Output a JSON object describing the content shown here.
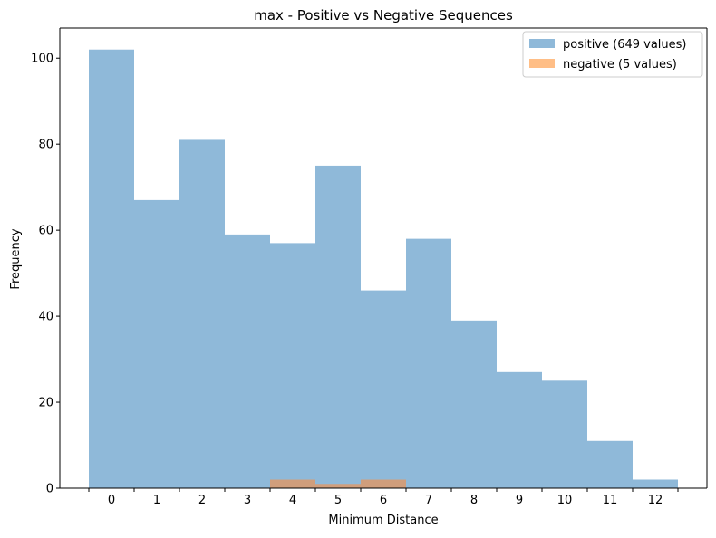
{
  "chart_data": {
    "type": "bar",
    "title": "max - Positive vs Negative Sequences",
    "xlabel": "Minimum Distance",
    "ylabel": "Frequency",
    "categories": [
      "0",
      "1",
      "2",
      "3",
      "4",
      "5",
      "6",
      "7",
      "8",
      "9",
      "10",
      "11",
      "12"
    ],
    "series": [
      {
        "name": "positive (649 values)",
        "values": [
          102,
          67,
          81,
          59,
          57,
          75,
          46,
          58,
          39,
          27,
          25,
          11,
          2
        ],
        "color": "#8fb9d9"
      },
      {
        "name": "negative (5 values)",
        "values": [
          0,
          0,
          0,
          0,
          2,
          1,
          2,
          0,
          0,
          0,
          0,
          0,
          0
        ],
        "color": "#ffbe86"
      }
    ],
    "overlap_color": "#d09e7c",
    "ylim": [
      0,
      107
    ],
    "yticks": [
      0,
      20,
      40,
      60,
      80,
      100
    ],
    "grid": false,
    "legend_position": "top-right"
  }
}
